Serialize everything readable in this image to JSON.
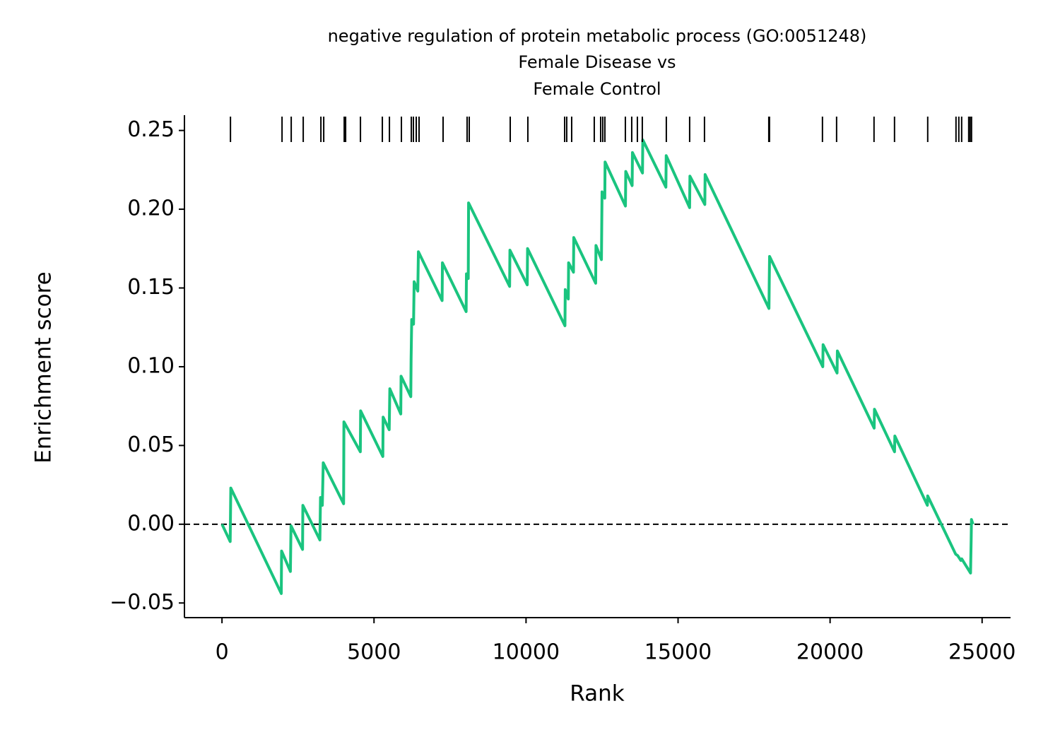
{
  "chart_data": {
    "type": "line",
    "title": [
      "negative regulation of protein metabolic process (GO:0051248)",
      "Female Disease vs",
      "Female Control"
    ],
    "xlabel": "Rank",
    "ylabel": "Enrichment score",
    "xlim": [
      -1235,
      25935
    ],
    "ylim": [
      -0.0593,
      0.2597
    ],
    "xticks": [
      0,
      5000,
      10000,
      15000,
      20000,
      25000
    ],
    "yticks": [
      {
        "value": -0.05,
        "label": "−0.05"
      },
      {
        "value": 0,
        "label": "0.00"
      },
      0.05,
      {
        "value": 0.1,
        "label": "0.10"
      },
      0.15,
      {
        "value": 0.2,
        "label": "0.20"
      },
      0.25
    ],
    "hline": 0,
    "series": [
      {
        "color": "#1ac47f",
        "x": [
          0,
          270,
          290,
          1950,
          1960,
          2250,
          2270,
          2650,
          2660,
          3220,
          3240,
          3300,
          3330,
          4000,
          4010,
          4550,
          4560,
          5290,
          5300,
          5500,
          5520,
          5880,
          5890,
          6210,
          6220,
          6240,
          6300,
          6320,
          6440,
          6460,
          7240,
          7250,
          8030,
          8040,
          8100,
          8110,
          9460,
          9470,
          10040,
          10050,
          11280,
          11290,
          11390,
          11400,
          11560,
          11570,
          12290,
          12300,
          12480,
          12490,
          12500,
          12590,
          12600,
          13270,
          13280,
          13490,
          13500,
          13830,
          13840,
          14600,
          14610,
          15380,
          15390,
          15880,
          15890,
          17990,
          18000,
          18010,
          19760,
          19770,
          20230,
          20240,
          21450,
          21460,
          22120,
          22130,
          23200,
          23210,
          24130,
          24200,
          24300,
          24330,
          24620,
          24630,
          24640,
          24650,
          24700
        ],
        "values": [
          0,
          -0.011,
          0.023,
          -0.044,
          -0.017,
          -0.03,
          -0.001,
          -0.016,
          0.012,
          -0.01,
          0.017,
          0.012,
          0.039,
          0.013,
          0.065,
          0.046,
          0.072,
          0.043,
          0.068,
          0.06,
          0.086,
          0.07,
          0.094,
          0.081,
          0.105,
          0.13,
          0.127,
          0.154,
          0.148,
          0.173,
          0.142,
          0.166,
          0.135,
          0.159,
          0.156,
          0.204,
          0.151,
          0.174,
          0.152,
          0.175,
          0.126,
          0.149,
          0.143,
          0.166,
          0.16,
          0.182,
          0.153,
          0.177,
          0.168,
          0.19,
          0.211,
          0.207,
          0.23,
          0.202,
          0.224,
          0.215,
          0.236,
          0.223,
          0.244,
          0.214,
          0.234,
          0.201,
          0.221,
          0.203,
          0.222,
          0.137,
          0.155,
          0.17,
          0.1,
          0.114,
          0.096,
          0.11,
          0.061,
          0.073,
          0.046,
          0.056,
          0.012,
          0.018,
          -0.019,
          -0.02,
          -0.023,
          -0.022,
          -0.031,
          -0.02,
          -0.01,
          0.003,
          0
        ]
      }
    ],
    "hits": [
      279,
      1975,
      2277,
      2672,
      3253,
      3346,
      4020,
      4066,
      4554,
      5274,
      5507,
      5901,
      6227,
      6296,
      6389,
      6482,
      7272,
      8062,
      8132,
      9480,
      10060,
      11269,
      11338,
      11501,
      12244,
      12454,
      12523,
      12593,
      13267,
      13476,
      13662,
      13824,
      14614,
      15381,
      15869,
      17984,
      18007,
      19749,
      20214,
      21445,
      22119,
      23211,
      24141,
      24234,
      24327,
      24559,
      24605,
      24652
    ]
  }
}
